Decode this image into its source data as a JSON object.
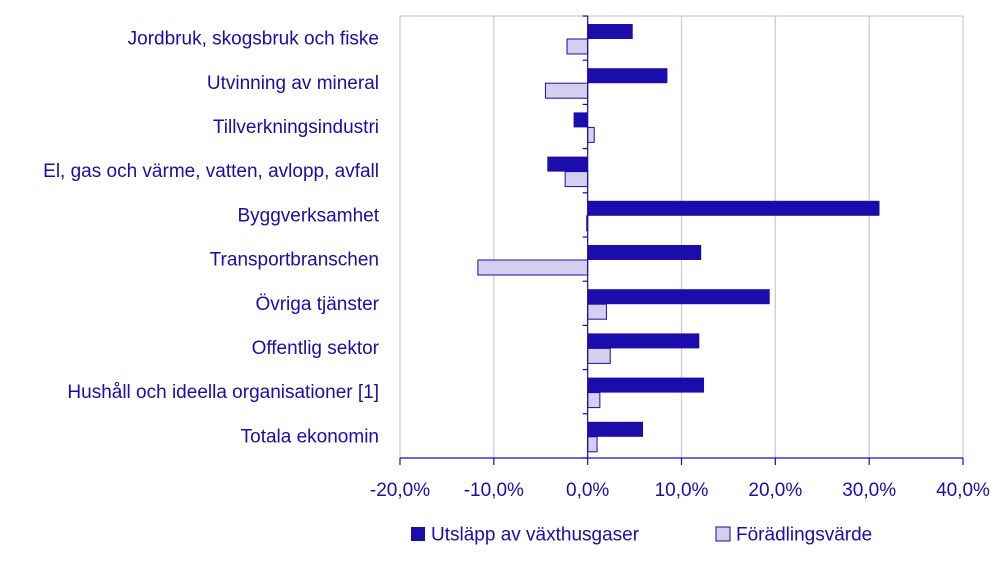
{
  "chart_data": {
    "type": "bar",
    "orientation": "horizontal",
    "categories": [
      "Jordbruk, skogsbruk och fiske",
      "Utvinning av mineral",
      "Tillverkningsindustri",
      "El, gas och värme, vatten, avlopp, avfall",
      "Byggverksamhet",
      "Transportbranschen",
      "Övriga tjänster",
      "Offentlig sektor",
      "Hushåll och ideella organisationer [1]",
      "Totala ekonomin"
    ],
    "series": [
      {
        "name": "Utsläpp av växthusgaser",
        "color": "#1a0dab",
        "values": [
          4.8,
          8.5,
          -1.5,
          -4.3,
          31.1,
          12.1,
          19.4,
          11.9,
          12.4,
          5.9
        ]
      },
      {
        "name": "Förädlingsvärde",
        "color": "#d4cfee",
        "values": [
          -2.2,
          -4.5,
          0.7,
          -2.4,
          -0.1,
          -11.7,
          2.0,
          2.4,
          1.3,
          1.0
        ]
      }
    ],
    "xlim": [
      -20,
      40
    ],
    "xticks": [
      -20,
      -10,
      0,
      10,
      20,
      30,
      40
    ],
    "xtick_labels": [
      "-20,0%",
      "-10,0%",
      "0,0%",
      "10,0%",
      "20,0%",
      "30,0%",
      "40,0%"
    ],
    "grid": true,
    "legend_position": "bottom"
  }
}
